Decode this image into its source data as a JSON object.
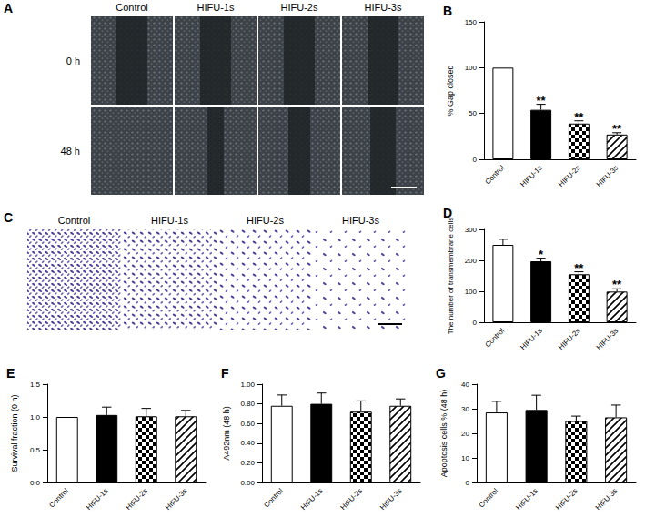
{
  "images": [
    {
      "title": "A",
      "columns": [
        "Control",
        "HIFU-1s",
        "HIFU-2s",
        "HIFU-3s"
      ],
      "rows": [
        "0 h",
        "48 h"
      ]
    },
    {
      "title": "C",
      "columns": [
        "Control",
        "HIFU-1s",
        "HIFU-2s",
        "HIFU-3s"
      ]
    }
  ],
  "chart_data": [
    {
      "type": "bar",
      "title": "B",
      "y_label": "% Gap closed",
      "categories": [
        "Control",
        "HIFU-1s",
        "HIFU-2s",
        "HIFU-3s"
      ],
      "values": [
        100,
        54,
        39,
        27
      ],
      "errors": [
        0,
        6,
        3,
        2
      ],
      "annotations": [
        null,
        "**",
        "**",
        "**"
      ],
      "colors": [
        "#ffffff",
        "#000000",
        "#ffffff",
        "#ffffff"
      ],
      "ylim": [
        0,
        150
      ],
      "yticks": [
        0,
        50,
        100,
        150
      ],
      "grid": false
    },
    {
      "type": "bar",
      "title": "D",
      "y_label": "The number of transmembrane cells",
      "categories": [
        "Control",
        "HIFU-1s",
        "HIFU-2s",
        "HIFU-3s"
      ],
      "values": [
        250,
        197,
        155,
        99
      ],
      "errors": [
        18,
        10,
        8,
        9
      ],
      "annotations": [
        null,
        "*",
        "**",
        "**"
      ],
      "colors": [
        "#ffffff",
        "#000000",
        "#ffffff",
        "#ffffff"
      ],
      "ylim": [
        0,
        300
      ],
      "yticks": [
        0,
        100,
        200,
        300
      ],
      "grid": false
    },
    {
      "type": "bar",
      "title": "E",
      "y_label": "Survival fraction (0 h)",
      "categories": [
        "Control",
        "HIFU-1s",
        "HIFU-2s",
        "HIFU-3s"
      ],
      "values": [
        1.0,
        1.03,
        1.01,
        1.01
      ],
      "errors": [
        0,
        0.12,
        0.12,
        0.09
      ],
      "colors": [
        "#ffffff",
        "#000000",
        "#ffffff",
        "#ffffff"
      ],
      "ylim": [
        0,
        1.5
      ],
      "yticks": [
        {
          "value": 0,
          "label": "0.0"
        },
        {
          "value": 0.5,
          "label": "0.5"
        },
        {
          "value": 1,
          "label": "1.0"
        },
        {
          "value": 1.5,
          "label": "1.5"
        }
      ],
      "grid": false
    },
    {
      "type": "bar",
      "title": "F",
      "y_label": "A492nm (48 h)",
      "categories": [
        "Control",
        "HIFU-1s",
        "HIFU-2s",
        "HIFU-3s"
      ],
      "values": [
        0.78,
        0.8,
        0.72,
        0.78
      ],
      "errors": [
        0.11,
        0.11,
        0.11,
        0.07
      ],
      "colors": [
        "#ffffff",
        "#000000",
        "#ffffff",
        "#ffffff"
      ],
      "ylim": [
        0,
        1
      ],
      "yticks": [
        {
          "value": 0,
          "label": "0.00"
        },
        {
          "value": 0.2,
          "label": "0.20"
        },
        {
          "value": 0.4,
          "label": "0.40"
        },
        {
          "value": 0.6,
          "label": "0.60"
        },
        {
          "value": 0.8,
          "label": "0.80"
        },
        {
          "value": 1,
          "label": "1.00"
        }
      ],
      "grid": false
    },
    {
      "type": "bar",
      "title": "G",
      "y_label": "Apoptosis cells % (48 h)",
      "categories": [
        "Control",
        "HIFU-1s",
        "HIFU-2s",
        "HIFU-3s"
      ],
      "values": [
        28.5,
        29.5,
        25,
        26.5
      ],
      "errors": [
        4.5,
        6,
        2,
        5
      ],
      "colors": [
        "#ffffff",
        "#000000",
        "#ffffff",
        "#ffffff"
      ],
      "ylim": [
        0,
        40
      ],
      "yticks": [
        0,
        10,
        20,
        30,
        40
      ],
      "grid": false
    }
  ]
}
